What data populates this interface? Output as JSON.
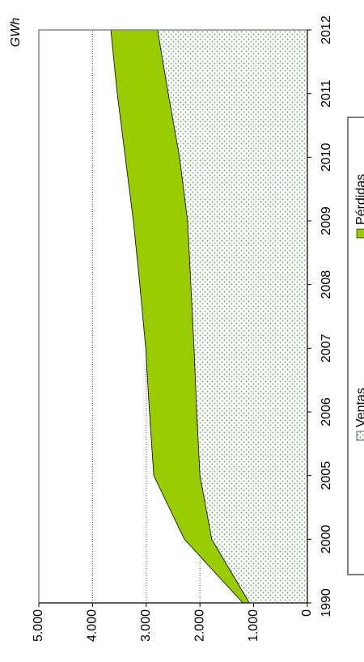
{
  "chart_data": {
    "type": "area",
    "y_label": "GWh",
    "categories": [
      "1990",
      "2000",
      "2005",
      "2006",
      "2007",
      "2008",
      "2009",
      "2010",
      "2011",
      "2012"
    ],
    "series": [
      {
        "name": "Ventas",
        "color": "#4fa04f",
        "values": [
          1080,
          1780,
          2000,
          2060,
          2110,
          2170,
          2230,
          2380,
          2590,
          2790
        ]
      },
      {
        "name": "Pérdidas",
        "color": "#99cc00",
        "values": [
          120,
          510,
          860,
          880,
          900,
          950,
          1010,
          1010,
          950,
          870
        ]
      }
    ],
    "stacked": true,
    "ylim": [
      0,
      5000
    ],
    "yticks": [
      0,
      {
        "value": 1000,
        "label": "1.000"
      },
      {
        "value": 2000,
        "label": "2.000"
      },
      {
        "value": 3000,
        "label": "3.000"
      },
      {
        "value": 4000,
        "label": "4.000"
      },
      {
        "value": 5000,
        "label": "5.000"
      }
    ],
    "grid": true
  }
}
